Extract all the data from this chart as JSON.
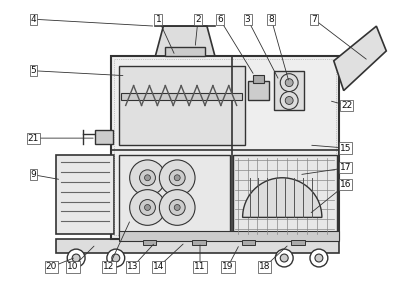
{
  "bg_color": "#ffffff",
  "dark_color": "#333333",
  "figsize": [
    4.01,
    3.04
  ],
  "dpi": 100,
  "labels_data": [
    [
      1,
      175,
      55,
      158,
      18
    ],
    [
      2,
      195,
      47,
      198,
      18
    ],
    [
      3,
      280,
      80,
      248,
      18
    ],
    [
      4,
      155,
      25,
      32,
      18
    ],
    [
      5,
      125,
      75,
      32,
      70
    ],
    [
      6,
      255,
      75,
      220,
      18
    ],
    [
      7,
      370,
      60,
      315,
      18
    ],
    [
      8,
      290,
      82,
      272,
      18
    ],
    [
      9,
      60,
      180,
      32,
      175
    ],
    [
      10,
      95,
      245,
      72,
      268
    ],
    [
      11,
      200,
      243,
      200,
      268
    ],
    [
      12,
      130,
      220,
      108,
      268
    ],
    [
      13,
      155,
      243,
      132,
      268
    ],
    [
      14,
      185,
      243,
      158,
      268
    ],
    [
      15,
      310,
      145,
      347,
      148
    ],
    [
      16,
      310,
      215,
      347,
      185
    ],
    [
      17,
      300,
      175,
      347,
      168
    ],
    [
      18,
      290,
      245,
      265,
      268
    ],
    [
      19,
      240,
      245,
      228,
      268
    ],
    [
      20,
      75,
      258,
      50,
      268
    ],
    [
      21,
      95,
      138,
      32,
      138
    ],
    [
      22,
      330,
      100,
      348,
      105
    ]
  ]
}
